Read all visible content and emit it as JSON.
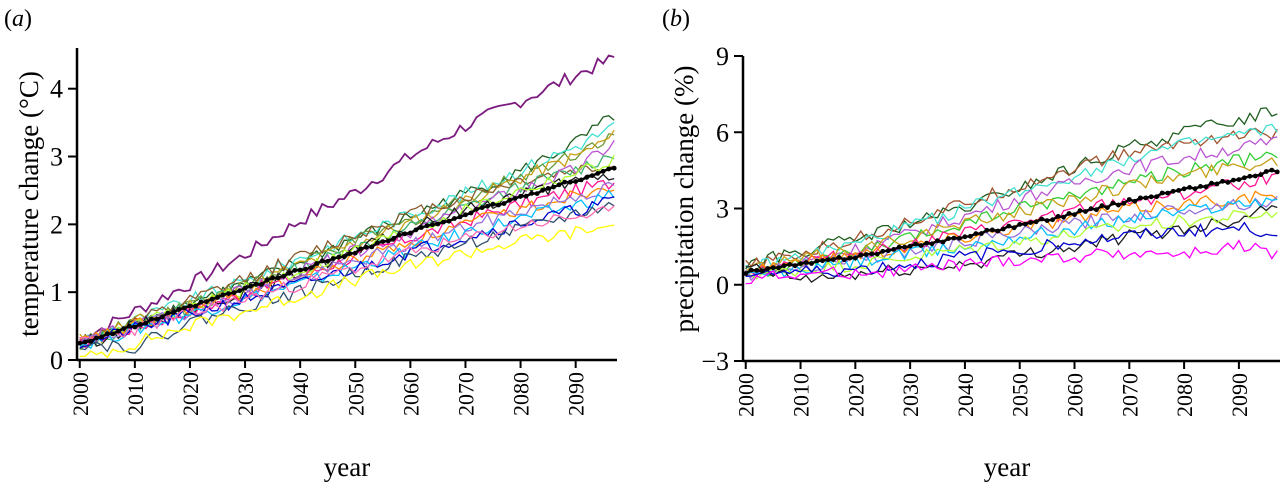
{
  "chart_data": [
    {
      "panel_label": "a",
      "type": "line",
      "xlabel": "year",
      "ylabel": "temperature change (°C)",
      "xlim": [
        1999.5,
        2097.5
      ],
      "ylim": [
        0,
        4.6
      ],
      "xticks": [
        2000,
        2010,
        2020,
        2030,
        2040,
        2050,
        2060,
        2070,
        2080,
        2090
      ],
      "yticks": [
        0,
        1,
        2,
        3,
        4
      ],
      "grid": false,
      "legend": "none",
      "series_x": [
        2000,
        2010,
        2020,
        2030,
        2040,
        2050,
        2060,
        2070,
        2080,
        2090,
        2097
      ],
      "mean_series": {
        "color": "#000000",
        "style": "dotted-markers",
        "values": [
          0.25,
          0.5,
          0.78,
          1.05,
          1.33,
          1.6,
          1.88,
          2.15,
          2.4,
          2.65,
          2.83
        ]
      },
      "series": [
        {
          "color": "#7b1b7f",
          "values": [
            0.3,
            0.72,
            1.12,
            1.55,
            2.05,
            2.48,
            3.0,
            3.45,
            3.82,
            4.2,
            4.45
          ]
        },
        {
          "color": "#1e5e1e",
          "values": [
            0.26,
            0.54,
            0.85,
            1.12,
            1.45,
            1.8,
            2.12,
            2.45,
            2.78,
            3.2,
            3.6
          ]
        },
        {
          "color": "#40e0d0",
          "values": [
            0.28,
            0.58,
            0.88,
            1.15,
            1.5,
            1.82,
            2.15,
            2.45,
            2.8,
            3.15,
            3.45
          ]
        },
        {
          "color": "#6a9a3a",
          "values": [
            0.25,
            0.55,
            0.85,
            1.1,
            1.42,
            1.75,
            2.05,
            2.38,
            2.72,
            3.05,
            3.35
          ]
        },
        {
          "color": "#c7a017",
          "values": [
            0.3,
            0.56,
            0.82,
            1.08,
            1.4,
            1.72,
            2.02,
            2.35,
            2.68,
            3.0,
            3.3
          ]
        },
        {
          "color": "#8a5a2b",
          "values": [
            0.24,
            0.55,
            0.86,
            1.2,
            1.52,
            1.85,
            2.15,
            2.4,
            2.65,
            2.8,
            2.85
          ]
        },
        {
          "color": "#3cb371",
          "values": [
            0.22,
            0.5,
            0.78,
            1.05,
            1.35,
            1.65,
            1.95,
            2.25,
            2.55,
            2.8,
            3.05
          ]
        },
        {
          "color": "#ba55d3",
          "values": [
            0.27,
            0.52,
            0.76,
            1.02,
            1.3,
            1.6,
            1.9,
            2.2,
            2.5,
            2.8,
            3.2
          ]
        },
        {
          "color": "#1f1f1f",
          "values": [
            0.22,
            0.5,
            0.75,
            1.02,
            1.3,
            1.6,
            1.92,
            2.22,
            2.45,
            2.62,
            2.72
          ]
        },
        {
          "color": "#adff2f",
          "values": [
            0.23,
            0.5,
            0.78,
            1.04,
            1.32,
            1.62,
            1.92,
            2.2,
            2.5,
            2.75,
            2.95
          ]
        },
        {
          "color": "#ff1493",
          "values": [
            0.25,
            0.48,
            0.72,
            0.98,
            1.25,
            1.52,
            1.8,
            2.05,
            2.3,
            2.5,
            2.62
          ]
        },
        {
          "color": "#ff8c00",
          "values": [
            0.26,
            0.5,
            0.74,
            0.98,
            1.22,
            1.48,
            1.75,
            2.0,
            2.22,
            2.45,
            2.6
          ]
        },
        {
          "color": "#9370db",
          "values": [
            0.24,
            0.48,
            0.72,
            0.96,
            1.2,
            1.45,
            1.7,
            1.95,
            2.2,
            2.42,
            2.55
          ]
        },
        {
          "color": "#00bfff",
          "values": [
            0.22,
            0.45,
            0.68,
            0.9,
            1.12,
            1.38,
            1.62,
            1.88,
            2.08,
            2.28,
            2.45
          ]
        },
        {
          "color": "#0000cd",
          "values": [
            0.23,
            0.45,
            0.68,
            0.9,
            1.12,
            1.35,
            1.6,
            1.82,
            2.02,
            2.2,
            2.35
          ]
        },
        {
          "color": "#2f4f6f",
          "values": [
            0.25,
            0.2,
            0.55,
            0.8,
            1.0,
            1.28,
            1.5,
            1.72,
            1.92,
            2.15,
            2.3
          ]
        },
        {
          "color": "#ff69b4",
          "values": [
            0.24,
            0.46,
            0.68,
            0.9,
            1.12,
            1.35,
            1.58,
            1.78,
            1.98,
            2.12,
            2.18
          ]
        },
        {
          "color": "#ffff00",
          "values": [
            0.0,
            0.25,
            0.5,
            0.72,
            0.95,
            1.18,
            1.38,
            1.58,
            1.75,
            1.88,
            1.98
          ]
        }
      ]
    },
    {
      "panel_label": "b",
      "type": "line",
      "xlabel": "year",
      "ylabel": "precipitation change (%)",
      "xlim": [
        1999.5,
        2097.5
      ],
      "ylim": [
        -3,
        9
      ],
      "xticks": [
        2000,
        2010,
        2020,
        2030,
        2040,
        2050,
        2060,
        2070,
        2080,
        2090
      ],
      "yticks": [
        -3,
        0,
        3,
        6,
        9
      ],
      "ytick_labels": [
        "−3",
        "0",
        "3",
        "6",
        "9"
      ],
      "grid": false,
      "legend": "none",
      "series_x": [
        2000,
        2010,
        2020,
        2030,
        2040,
        2050,
        2060,
        2070,
        2080,
        2090,
        2097
      ],
      "mean_series": {
        "color": "#000000",
        "style": "dotted-markers",
        "values": [
          0.5,
          0.8,
          1.1,
          1.5,
          1.9,
          2.35,
          2.8,
          3.3,
          3.75,
          4.15,
          4.5
        ]
      },
      "series": [
        {
          "color": "#1e5e1e",
          "values": [
            0.8,
            1.3,
            1.8,
            2.4,
            3.0,
            3.8,
            4.6,
            5.4,
            6.0,
            6.5,
            6.9
          ]
        },
        {
          "color": "#a0522d",
          "values": [
            0.7,
            1.2,
            1.8,
            2.5,
            3.2,
            3.9,
            4.6,
            5.2,
            5.6,
            5.9,
            6.0
          ]
        },
        {
          "color": "#40e0d0",
          "values": [
            0.6,
            1.1,
            1.6,
            2.3,
            3.0,
            3.7,
            4.3,
            5.0,
            5.5,
            5.9,
            6.1
          ]
        },
        {
          "color": "#ba55d3",
          "values": [
            0.5,
            0.9,
            1.4,
            2.0,
            2.7,
            3.4,
            4.0,
            4.6,
            5.0,
            5.4,
            5.6
          ]
        },
        {
          "color": "#32cd32",
          "values": [
            0.4,
            0.8,
            1.2,
            1.8,
            2.4,
            3.0,
            3.5,
            4.1,
            4.5,
            4.9,
            5.0
          ]
        },
        {
          "color": "#c7a017",
          "values": [
            0.6,
            1.0,
            1.4,
            1.9,
            2.4,
            2.9,
            3.4,
            3.9,
            4.3,
            4.7,
            4.9
          ]
        },
        {
          "color": "#ff1493",
          "values": [
            0.5,
            0.9,
            1.2,
            1.6,
            2.0,
            2.4,
            2.9,
            3.3,
            3.6,
            4.0,
            4.3
          ]
        },
        {
          "color": "#ff8c00",
          "values": [
            0.6,
            0.9,
            1.2,
            1.5,
            1.9,
            2.3,
            2.6,
            3.0,
            3.2,
            3.4,
            3.5
          ]
        },
        {
          "color": "#9370db",
          "values": [
            0.4,
            0.7,
            1.0,
            1.3,
            1.7,
            2.0,
            2.4,
            2.7,
            3.0,
            3.2,
            3.3
          ]
        },
        {
          "color": "#00bfff",
          "values": [
            0.3,
            0.6,
            0.9,
            1.2,
            1.5,
            1.9,
            2.2,
            2.6,
            2.9,
            3.2,
            3.4
          ]
        },
        {
          "color": "#1f1f1f",
          "values": [
            0.7,
            0.2,
            0.4,
            0.6,
            0.8,
            1.2,
            1.5,
            1.9,
            2.2,
            2.6,
            3.3
          ]
        },
        {
          "color": "#adff2f",
          "values": [
            0.4,
            0.6,
            0.8,
            1.1,
            1.4,
            1.7,
            2.0,
            2.3,
            2.5,
            2.7,
            2.8
          ]
        },
        {
          "color": "#0000cd",
          "values": [
            0.5,
            0.5,
            0.6,
            0.8,
            1.1,
            1.4,
            1.7,
            1.9,
            2.1,
            2.2,
            2.1
          ]
        },
        {
          "color": "#ff00ff",
          "values": [
            0.3,
            0.4,
            0.5,
            0.6,
            0.8,
            1.0,
            1.1,
            1.3,
            1.2,
            1.5,
            1.2
          ]
        }
      ]
    }
  ]
}
